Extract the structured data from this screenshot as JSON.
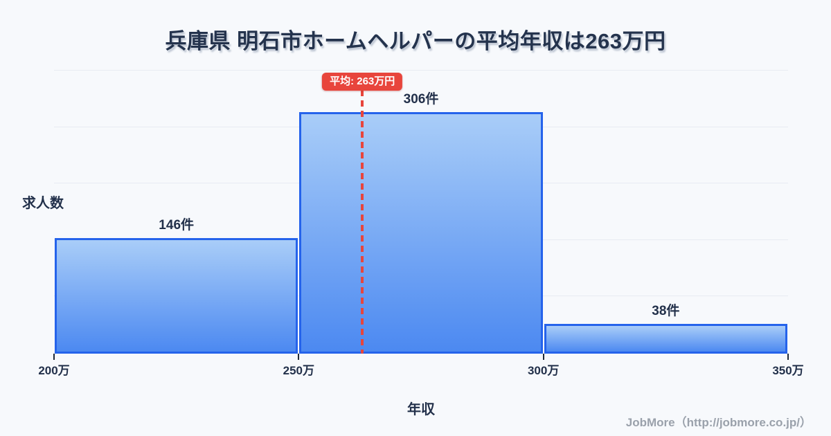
{
  "title": "兵庫県 明石市ホームヘルパーの平均年収は263万円",
  "footer": "JobMore（http://jobmore.co.jp/）",
  "chart_data": {
    "type": "bar",
    "subtype": "histogram",
    "title": "兵庫県 明石市ホームヘルパーの平均年収は263万円",
    "xlabel": "年収",
    "ylabel": "求人数",
    "x_tick_labels": [
      "200万",
      "250万",
      "300万",
      "350万"
    ],
    "x_range": [
      200,
      350
    ],
    "grid": true,
    "legend": "none",
    "bins": [
      {
        "range": "200万-250万",
        "count": 146,
        "label": "146件"
      },
      {
        "range": "250万-300万",
        "count": 306,
        "label": "306件"
      },
      {
        "range": "300万-350万",
        "count": 38,
        "label": "38件"
      }
    ],
    "average": {
      "value": 263,
      "label": "平均: 263万円"
    }
  },
  "colors": {
    "background": "#f7f9fc",
    "title_text": "#24334d",
    "axis_text": "#22304a",
    "bar_border": "#2563eb",
    "bar_gradient_top": "#a9cdf8",
    "bar_gradient_bottom": "#4c89f1",
    "average_red": "#e8453c",
    "gridline": "#e8ebf2",
    "tick": "#1f2937",
    "footer_text": "#9aa1ab"
  }
}
